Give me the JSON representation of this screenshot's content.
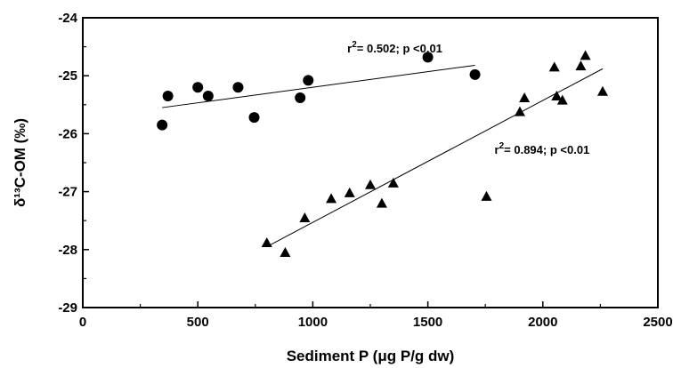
{
  "chart_data": {
    "type": "scatter",
    "title": "",
    "xlabel": "Sediment P (μg P/g dw)",
    "ylabel": "δ¹³C-OM (‰)",
    "xlim": [
      0,
      2500
    ],
    "ylim": [
      -29,
      -24
    ],
    "x_ticks": [
      0,
      500,
      1000,
      1500,
      2000,
      2500
    ],
    "x_tick_labels": [
      "0",
      "500",
      "1000",
      "1500",
      "2000",
      "2500"
    ],
    "y_ticks": [
      -29,
      -28,
      -27,
      -26,
      -25,
      -24
    ],
    "y_tick_labels": [
      "-29",
      "-28",
      "-27",
      "-26",
      "-25",
      "-24"
    ],
    "grid": false,
    "series": [
      {
        "marker": "circle",
        "color": "#000000",
        "points": [
          [
            345,
            -25.85
          ],
          [
            370,
            -25.35
          ],
          [
            500,
            -25.2
          ],
          [
            545,
            -25.35
          ],
          [
            675,
            -25.2
          ],
          [
            745,
            -25.72
          ],
          [
            945,
            -25.38
          ],
          [
            980,
            -25.08
          ],
          [
            1500,
            -24.68
          ],
          [
            1705,
            -24.98
          ]
        ],
        "fit_line": [
          [
            345,
            -25.55
          ],
          [
            1705,
            -24.82
          ]
        ],
        "annotation": {
          "main": "r",
          "sup": "2",
          "rest": "= 0.502; p <0.01",
          "at": [
            1150,
            -24.6
          ]
        }
      },
      {
        "marker": "triangle",
        "color": "#000000",
        "points": [
          [
            800,
            -27.88
          ],
          [
            880,
            -28.05
          ],
          [
            965,
            -27.45
          ],
          [
            1080,
            -27.12
          ],
          [
            1160,
            -27.02
          ],
          [
            1250,
            -26.88
          ],
          [
            1300,
            -27.2
          ],
          [
            1350,
            -26.85
          ],
          [
            1755,
            -27.08
          ],
          [
            1900,
            -25.62
          ],
          [
            1920,
            -25.38
          ],
          [
            2050,
            -24.85
          ],
          [
            2060,
            -25.35
          ],
          [
            2085,
            -25.42
          ],
          [
            2165,
            -24.83
          ],
          [
            2185,
            -24.65
          ],
          [
            2260,
            -25.27
          ]
        ],
        "fit_line": [
          [
            800,
            -27.95
          ],
          [
            2260,
            -24.88
          ]
        ],
        "annotation": {
          "main": "r",
          "sup": "2",
          "rest": "= 0.894; p <0.01",
          "at": [
            1790,
            -26.35
          ]
        }
      }
    ]
  }
}
